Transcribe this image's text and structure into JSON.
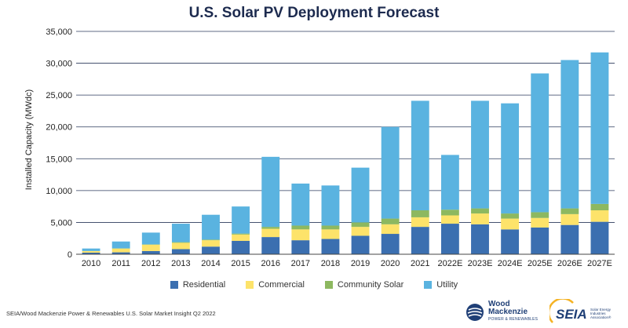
{
  "title": "U.S. Solar PV Deployment Forecast",
  "source": "SEIA/Wood Mackenzie Power & Renewables U.S. Solar Market Insight Q2 2022",
  "logos": {
    "wood_mackenzie": {
      "line1": "Wood",
      "line2": "Mackenzie",
      "tagline": "POWER & RENEWABLES"
    },
    "seia": {
      "word": "SEIA",
      "tagline_1": "Solar Energy",
      "tagline_2": "Industries",
      "tagline_3": "Association®"
    }
  },
  "chart_data": {
    "type": "bar",
    "stacked": true,
    "ylabel": "Installed Capacity (MWdc)",
    "xlabel": "",
    "ylim": [
      0,
      35000
    ],
    "yticks": [
      0,
      5000,
      10000,
      15000,
      20000,
      25000,
      30000,
      35000
    ],
    "ytick_labels": [
      "0",
      "5,000",
      "10,000",
      "15,000",
      "20,000",
      "25,000",
      "30,000",
      "35,000"
    ],
    "grid": true,
    "legend_position": "bottom",
    "categories": [
      "2010",
      "2011",
      "2012",
      "2013",
      "2014",
      "2015",
      "2016",
      "2017",
      "2018",
      "2019",
      "2020",
      "2021",
      "2022E",
      "2023E",
      "2024E",
      "2025E",
      "2026E",
      "2027E"
    ],
    "series": [
      {
        "name": "Residential",
        "color": "#3b6fb0",
        "values": [
          250,
          300,
          500,
          800,
          1200,
          2100,
          2700,
          2200,
          2400,
          2900,
          3200,
          4300,
          4800,
          4700,
          3900,
          4200,
          4600,
          5100
        ]
      },
      {
        "name": "Commercial",
        "color": "#fde36a",
        "values": [
          250,
          600,
          1000,
          1000,
          1000,
          1000,
          1300,
          1700,
          1500,
          1400,
          1500,
          1500,
          1300,
          1700,
          1700,
          1500,
          1700,
          1800
        ]
      },
      {
        "name": "Community Solar",
        "color": "#8db860",
        "values": [
          10,
          20,
          50,
          100,
          100,
          150,
          300,
          600,
          600,
          700,
          900,
          1100,
          900,
          800,
          800,
          900,
          900,
          1000
        ]
      },
      {
        "name": "Utility",
        "color": "#5ab3e0",
        "values": [
          390,
          1080,
          1850,
          2900,
          3900,
          4250,
          11000,
          6600,
          6300,
          8600,
          14400,
          17200,
          8600,
          16900,
          17300,
          21800,
          23300,
          23800
        ]
      }
    ]
  }
}
